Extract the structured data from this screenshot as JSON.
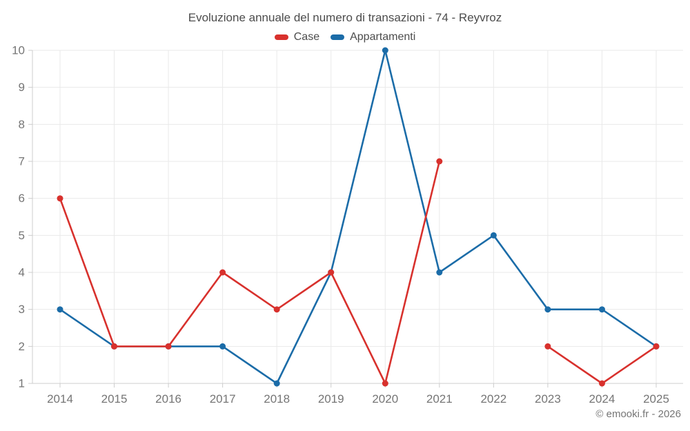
{
  "header": {
    "title": "Evoluzione annuale del numero di transazioni - 74 - Reyvroz"
  },
  "legend": {
    "items": [
      {
        "label": "Case",
        "color": "#d8312d"
      },
      {
        "label": "Appartamenti",
        "color": "#1b6ca8"
      }
    ]
  },
  "footer": {
    "copyright": "© emooki.fr - 2026"
  },
  "chart_data": {
    "type": "line",
    "title": "Evoluzione annuale del numero di transazioni - 74 - Reyvroz",
    "x": [
      "2014",
      "2015",
      "2016",
      "2017",
      "2018",
      "2019",
      "2020",
      "2021",
      "2022",
      "2023",
      "2024",
      "2025"
    ],
    "series": [
      {
        "name": "Case",
        "color": "#d8312d",
        "values": [
          6,
          2,
          2,
          4,
          3,
          4,
          1,
          7,
          null,
          2,
          1,
          2
        ]
      },
      {
        "name": "Appartamenti",
        "color": "#1b6ca8",
        "values": [
          3,
          2,
          2,
          2,
          1,
          4,
          10,
          4,
          5,
          3,
          3,
          2
        ]
      }
    ],
    "ylim": [
      1,
      10
    ],
    "ytick_step": 1,
    "yticks": [
      1,
      2,
      3,
      4,
      5,
      6,
      7,
      8,
      9,
      10
    ],
    "grid": true,
    "legend_position": "top",
    "marker": "circle",
    "line_width": 2.6,
    "marker_radius": 4.5
  },
  "colors": {
    "title_text": "#4c4c4c",
    "axis_text": "#757575",
    "gridline": "#e9e9e9",
    "axis_line": "#cccccc",
    "background": "#ffffff"
  }
}
